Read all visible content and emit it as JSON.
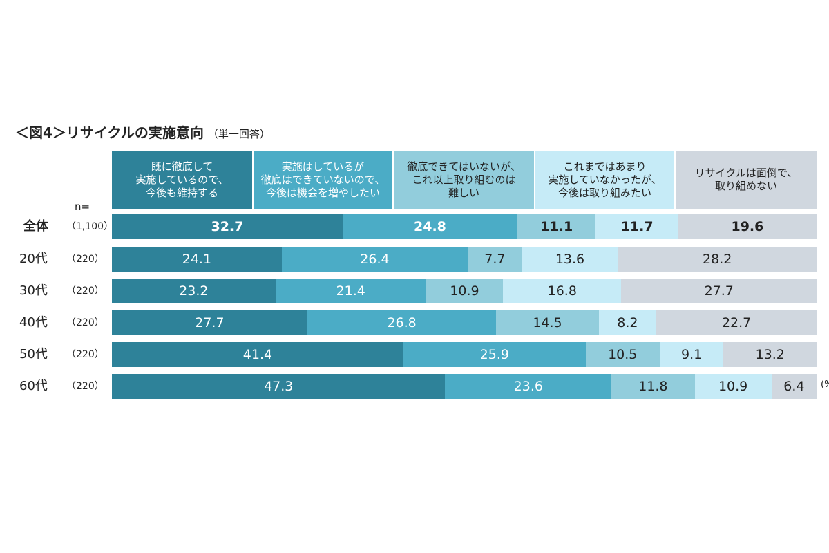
{
  "header": {
    "title": "＜図4＞リサイクルの実施意向",
    "subtitle": "（単一回答）",
    "n_label": "n=",
    "unit": "(%"
  },
  "colors": [
    "#2e8299",
    "#4bacc6",
    "#92cddc",
    "#c6ebf7",
    "#d0d7df"
  ],
  "text_colors": [
    "#ffffff",
    "#ffffff",
    "#222222",
    "#222222",
    "#222222"
  ],
  "chart_data": {
    "type": "bar",
    "stacked": true,
    "orientation": "horizontal",
    "title": "＜図4＞リサイクルの実施意向",
    "subtitle": "（単一回答）",
    "categories": [
      "全体",
      "20代",
      "30代",
      "40代",
      "50代",
      "60代"
    ],
    "sample_sizes": [
      "（1,100）",
      "（220）",
      "（220）",
      "（220）",
      "（220）",
      "（220）"
    ],
    "series": [
      {
        "name": "既に徹底して\n実施しているので、\n今後も維持する",
        "values": [
          32.7,
          24.1,
          23.2,
          27.7,
          41.4,
          47.3
        ]
      },
      {
        "name": "実施はしているが\n徹底はできていないので、\n今後は機会を増やしたい",
        "values": [
          24.8,
          26.4,
          21.4,
          26.8,
          25.9,
          23.6
        ]
      },
      {
        "name": "徹底できてはいないが、\nこれ以上取り組むのは\n難しい",
        "values": [
          11.1,
          7.7,
          10.9,
          14.5,
          10.5,
          11.8
        ]
      },
      {
        "name": "これまではあまり\n実施していなかったが、\n今後は取り組みたい",
        "values": [
          11.7,
          13.6,
          16.8,
          8.2,
          9.1,
          10.9
        ]
      },
      {
        "name": "リサイクルは面倒で、\n取り組めない",
        "values": [
          19.6,
          28.2,
          27.7,
          22.7,
          13.2,
          6.4
        ]
      }
    ],
    "xlim": [
      0,
      100
    ],
    "legend_position": "top"
  }
}
